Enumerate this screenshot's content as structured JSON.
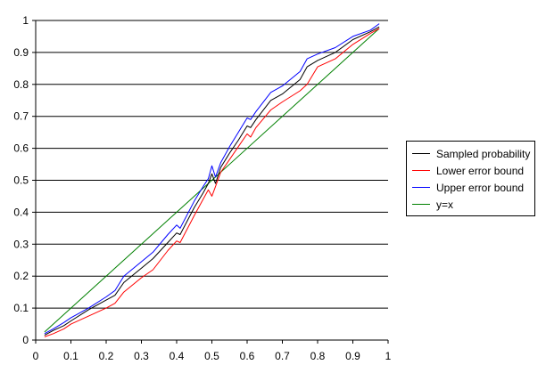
{
  "chart_data": {
    "type": "line",
    "title": "",
    "xlabel": "",
    "ylabel": "",
    "xlim": [
      0,
      1
    ],
    "ylim": [
      0,
      1
    ],
    "x_ticks": [
      "0",
      "0.1",
      "0.2",
      "0.3",
      "0.4",
      "0.5",
      "0.6",
      "0.7",
      "0.8",
      "0.9",
      "1"
    ],
    "y_ticks": [
      "0",
      "0.1",
      "0.2",
      "0.3",
      "0.4",
      "0.5",
      "0.6",
      "0.7",
      "0.8",
      "0.9",
      "1"
    ],
    "grid": "horizontal major gridlines",
    "legend_position": "right",
    "series": [
      {
        "name": "Sampled probability",
        "color": "#000000",
        "x": [
          0.025,
          0.05,
          0.08,
          0.1,
          0.15,
          0.2,
          0.225,
          0.25,
          0.3,
          0.333,
          0.375,
          0.4,
          0.41,
          0.45,
          0.475,
          0.49,
          0.5,
          0.51,
          0.525,
          0.55,
          0.575,
          0.6,
          0.61,
          0.625,
          0.667,
          0.7,
          0.75,
          0.77,
          0.8,
          0.85,
          0.9,
          0.95,
          0.975
        ],
        "y": [
          0.015,
          0.03,
          0.045,
          0.06,
          0.095,
          0.125,
          0.14,
          0.18,
          0.225,
          0.255,
          0.305,
          0.335,
          0.33,
          0.415,
          0.46,
          0.49,
          0.52,
          0.49,
          0.54,
          0.585,
          0.625,
          0.67,
          0.665,
          0.69,
          0.75,
          0.77,
          0.815,
          0.855,
          0.875,
          0.9,
          0.94,
          0.965,
          0.98
        ]
      },
      {
        "name": "Lower error bound",
        "color": "#ff0000",
        "x": [
          0.025,
          0.05,
          0.08,
          0.1,
          0.15,
          0.2,
          0.225,
          0.25,
          0.3,
          0.333,
          0.375,
          0.4,
          0.41,
          0.45,
          0.475,
          0.49,
          0.5,
          0.51,
          0.525,
          0.55,
          0.575,
          0.6,
          0.61,
          0.625,
          0.667,
          0.7,
          0.75,
          0.77,
          0.8,
          0.85,
          0.9,
          0.95,
          0.975
        ],
        "y": [
          0.01,
          0.02,
          0.035,
          0.05,
          0.075,
          0.1,
          0.115,
          0.15,
          0.195,
          0.22,
          0.28,
          0.31,
          0.305,
          0.39,
          0.44,
          0.47,
          0.45,
          0.48,
          0.525,
          0.565,
          0.605,
          0.645,
          0.635,
          0.665,
          0.72,
          0.745,
          0.78,
          0.8,
          0.855,
          0.88,
          0.925,
          0.96,
          0.975
        ]
      },
      {
        "name": "Upper error bound",
        "color": "#0000ff",
        "x": [
          0.025,
          0.05,
          0.08,
          0.1,
          0.15,
          0.2,
          0.225,
          0.25,
          0.3,
          0.333,
          0.375,
          0.4,
          0.41,
          0.45,
          0.475,
          0.49,
          0.5,
          0.51,
          0.525,
          0.55,
          0.575,
          0.6,
          0.61,
          0.625,
          0.667,
          0.7,
          0.75,
          0.77,
          0.8,
          0.85,
          0.9,
          0.95,
          0.975
        ],
        "y": [
          0.02,
          0.035,
          0.055,
          0.07,
          0.1,
          0.135,
          0.155,
          0.2,
          0.245,
          0.275,
          0.33,
          0.36,
          0.35,
          0.435,
          0.48,
          0.505,
          0.545,
          0.51,
          0.555,
          0.605,
          0.65,
          0.695,
          0.69,
          0.715,
          0.775,
          0.795,
          0.84,
          0.88,
          0.895,
          0.915,
          0.95,
          0.97,
          0.99
        ]
      },
      {
        "name": "y=x",
        "color": "#008000",
        "x": [
          0.025,
          0.975
        ],
        "y": [
          0.025,
          0.975
        ]
      }
    ]
  }
}
